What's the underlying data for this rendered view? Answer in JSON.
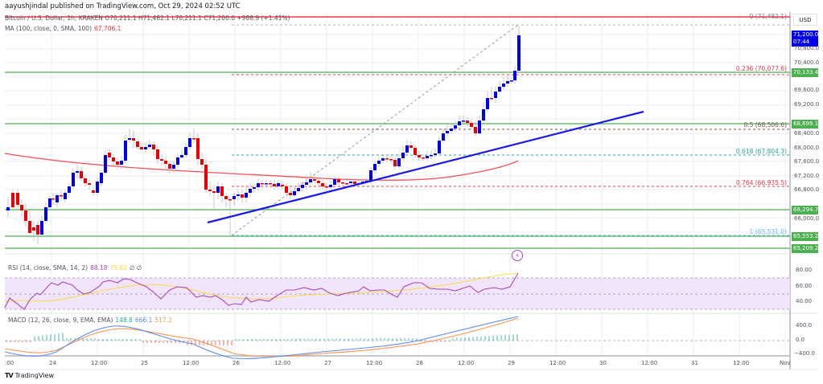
{
  "header": {
    "publisher": "aayushjindal published on TradingView.com, Oct 29, 2024 02:52 UTC"
  },
  "legend": {
    "symbol_line": "Bitcoin / U.S. Dollar, 1h, KRAKEN  O70,211.1  H71,482.1  L70,211.1  C71,200.0  +988.9 (+1.41%)",
    "ma_label": "MA (100, close, 0, SMA, 100)",
    "ma_value": "67,706.1",
    "rsi_label": "RSI (14, close, SMA, 14, 2)",
    "rsi_value": "88.18",
    "rsi_ma_value": "75.82",
    "rsi_extra": "∅ ∅",
    "macd_label": "MACD (12, 26, close, 9, EMA, EMA)",
    "macd_hist": "148.8",
    "macd_line": "666.1",
    "macd_signal": "517.2"
  },
  "price_axis": {
    "currency": "USD",
    "ticks": [
      "70,800.0",
      "70,400.0",
      "69,600.0",
      "69,200.0",
      "68,400.0",
      "68,000.0",
      "67,600.0",
      "67,200.0",
      "66,800.0",
      "66,000.0"
    ],
    "current_price": "71,200.0",
    "countdown": "07:44",
    "tags": [
      {
        "label": "70,133.4",
        "color": "#4caf50"
      },
      {
        "label": "68,699.1",
        "color": "#4caf50"
      },
      {
        "label": "66,294.7",
        "color": "#4caf50"
      },
      {
        "label": "65,553.2",
        "color": "#4caf50"
      },
      {
        "label": "65,209.2",
        "color": "#4caf50"
      }
    ]
  },
  "rsi_axis": {
    "ticks": [
      "80.00",
      "60.00",
      "40.00"
    ]
  },
  "macd_axis": {
    "ticks": [
      "400.0",
      "0.0",
      "−400.0"
    ]
  },
  "time_axis": {
    "ticks": [
      ":00",
      "24",
      "12:00",
      "25",
      "12:00",
      "26",
      "12:00",
      "27",
      "12:00",
      "28",
      "12:00",
      "29",
      "12:00",
      "30",
      "12:00",
      "31",
      "12:00",
      "Nov"
    ]
  },
  "fib_levels": [
    {
      "label": "0 (71,482.1)",
      "color": "#787b86"
    },
    {
      "label": "0.236 (70,077.6)",
      "color": "#f23645"
    },
    {
      "label": "0.5 (68,506.6)",
      "color": "#795548"
    },
    {
      "label": "0.618 (67,804.3)",
      "color": "#26a69a"
    },
    {
      "label": "0.764 (66,935.5)",
      "color": "#f23645"
    },
    {
      "label": "1 (65,531.0)",
      "color": "#64b5f6"
    }
  ],
  "colors": {
    "bull_candle": "#0000ee",
    "bear_candle": "#ee0000",
    "ma_line": "#f0505a",
    "trendline": "#1a1ae6",
    "horizontal_levels": "#4caf50",
    "resistance_top": "#f23645",
    "rsi_line": "#ab47bc",
    "rsi_ma": "#fdd835",
    "rsi_band": "#e9d7fb",
    "macd_line": "#5b8def",
    "macd_signal": "#ff9350",
    "macd_hist_pos": "#26a69a",
    "macd_hist_neg": "#ef5350"
  },
  "footer": {
    "brand": "TradingView",
    "logo_glyph": "TV"
  },
  "chart_data": {
    "type": "candlestick",
    "title": "Bitcoin / U.S. Dollar, 1h, KRAKEN",
    "xlabel": "",
    "ylabel": "USD",
    "ylim": [
      65000,
      71600
    ],
    "x_ticks": [
      "24",
      "12:00",
      "25",
      "12:00",
      "26",
      "12:00",
      "27",
      "12:00",
      "28",
      "12:00",
      "29",
      "12:00",
      "30",
      "12:00",
      "31",
      "12:00",
      "Nov"
    ],
    "ohlc_last": {
      "open": 70211.1,
      "high": 71482.1,
      "low": 70211.1,
      "close": 71200.0,
      "change": 988.9,
      "change_pct": 1.41
    },
    "approx_close_path": [
      {
        "t": "Oct 23 18:00",
        "p": 66500
      },
      {
        "t": "Oct 24 00:00",
        "p": 65800
      },
      {
        "t": "Oct 24 06:00",
        "p": 66900
      },
      {
        "t": "Oct 24 12:00",
        "p": 67200
      },
      {
        "t": "Oct 24 18:00",
        "p": 68000
      },
      {
        "t": "Oct 25 00:00",
        "p": 68400
      },
      {
        "t": "Oct 25 06:00",
        "p": 68100
      },
      {
        "t": "Oct 25 12:00",
        "p": 67800
      },
      {
        "t": "Oct 25 18:00",
        "p": 68500
      },
      {
        "t": "Oct 25 22:00",
        "p": 66700
      },
      {
        "t": "Oct 26 00:00",
        "p": 66400
      },
      {
        "t": "Oct 26 12:00",
        "p": 66900
      },
      {
        "t": "Oct 27 00:00",
        "p": 67000
      },
      {
        "t": "Oct 27 12:00",
        "p": 67700
      },
      {
        "t": "Oct 28 00:00",
        "p": 67700
      },
      {
        "t": "Oct 28 06:00",
        "p": 68400
      },
      {
        "t": "Oct 28 12:00",
        "p": 68900
      },
      {
        "t": "Oct 28 18:00",
        "p": 69700
      },
      {
        "t": "Oct 29 00:00",
        "p": 70100
      },
      {
        "t": "Oct 29 02:00",
        "p": 71200
      }
    ],
    "indicators": {
      "ma100": 67706.1,
      "rsi14": 88.18,
      "rsi_ma": 75.82,
      "macd": {
        "hist": 148.8,
        "macd": 666.1,
        "signal": 517.2
      }
    },
    "horizontal_levels": [
      71482.1,
      70133.4,
      68699.1,
      66294.7,
      65553.2,
      65209.2
    ],
    "fibonacci": [
      {
        "ratio": 0,
        "price": 71482.1
      },
      {
        "ratio": 0.236,
        "price": 70077.6
      },
      {
        "ratio": 0.5,
        "price": 68506.6
      },
      {
        "ratio": 0.618,
        "price": 67804.3
      },
      {
        "ratio": 0.764,
        "price": 66935.5
      },
      {
        "ratio": 1,
        "price": 65531.0
      }
    ],
    "trendline": {
      "start": {
        "t": "Oct 25 22:00",
        "p": 65900
      },
      "end": {
        "t": "Oct 30 12:00",
        "p": 69100
      }
    },
    "rsi_levels": [
      70,
      50,
      30
    ]
  }
}
